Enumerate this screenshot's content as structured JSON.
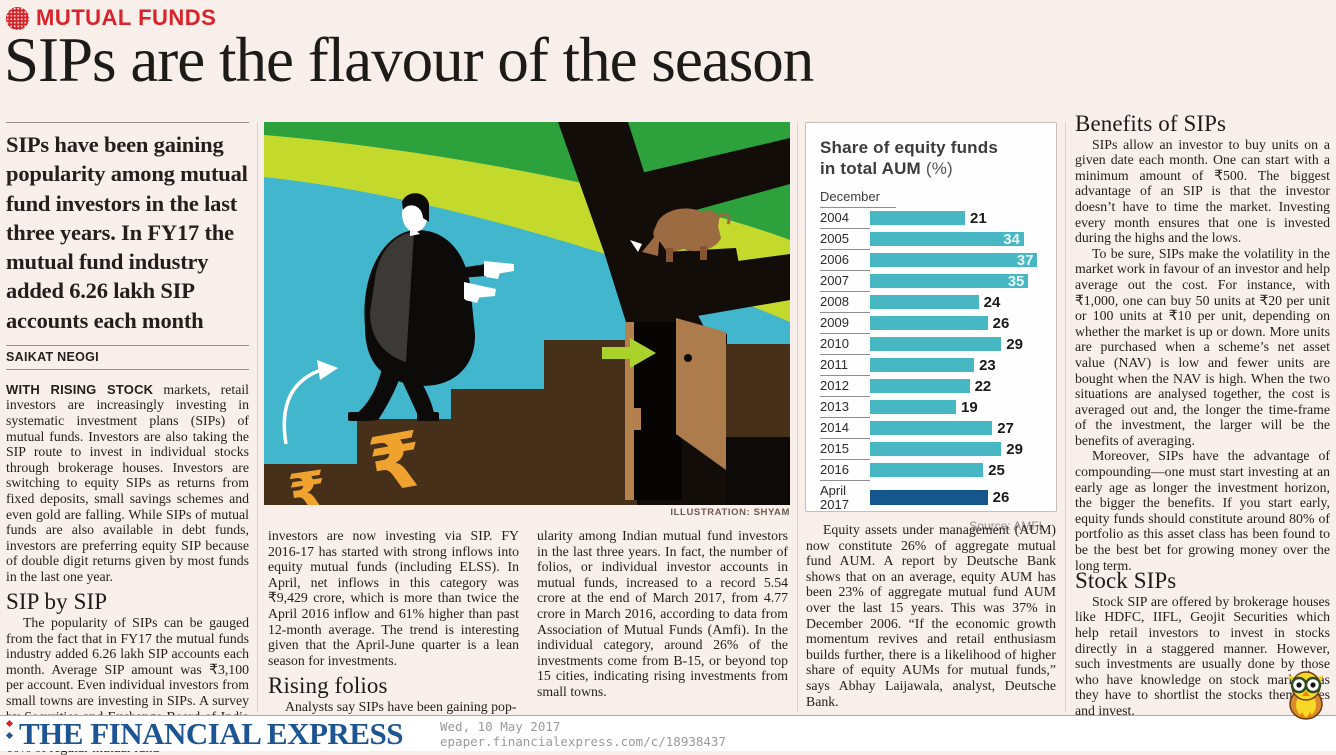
{
  "kicker": {
    "label": "MUTUAL FUNDS"
  },
  "headline": "SIPs are the flavour of the season",
  "standfirst": "SIPs have been gaining popularity among mutual fund investors in the last three years. In FY17 the mutual fund industry added 6.26 lakh SIP accounts each month",
  "byline": "SAIKAT NEOGI",
  "columns": {
    "col1_para1_lead": "WITH RISING STOCK",
    "col1_para1_rest": " markets, retail investors are increasingly investing in systematic investment plans (SIPs) of mutual funds. Investors are also taking the SIP route to invest in individual stocks through brokerage houses. Investors are switching to equity SIPs as returns from fixed deposits, small savings schemes and even gold are falling. While SIPs of mutual funds are also available in debt funds, investors are preferring equity SIP because of double digit returns given by most funds in the last one year.",
    "col1_heading": "SIP by SIP",
    "col1_para2": "The popularity of SIPs can be gauged from the fact that in FY17 the mutual funds industry added 6.26 lakh SIP accounts each month. Average SIP amount was ₹3,100 per account. Even individual investors from small towns are investing in SIPs. A survey by Securities and Exchange Board of India (Sebi) in April this year shows that nearly 60% of regular mutual fund",
    "col2_para1": "investors are now investing via SIP. FY 2016-17 has started with strong inflows into equity mutual funds (including ELSS). In April, net inflows in this category was ₹9,429 crore, which is more than twice the April 2016 inflow and 61% higher than past 12-month average. The trend is interesting given that the April-June quarter is a lean season for investments.",
    "col2_heading": "Rising folios",
    "col2_para2": "Analysts say SIPs have been gaining pop-",
    "col3_para1": "ularity among Indian mutual fund investors in the last three years. In fact, the number of folios, or individual investor accounts in mutual funds, increased to a record 5.54 crore at the end of March 2017, from 4.77 crore in March 2016, according to data from Association of Mutual Funds (Amfi). In the individual category, around 26% of the investments come from B-15, or beyond top 15 cities, indicating rising investments from small towns.",
    "col4_para1": "Equity assets under management (AUM) now constitute 26% of aggregate mutual fund AUM. A report by Deutsche Bank shows that on an average, equity AUM has been 23% of aggregate mutual fund AUM over the last 15 years. This was 37% in December 2006. “If the economic growth momentum revives and retail enthusiasm builds further, there is a likelihood of higher share of equity AUMs for mutual funds,” says Abhay Laijawala, analyst, Deutsche Bank.",
    "col5_heading1": "Benefits of SIPs",
    "col5_para1": "SIPs allow an investor to buy units on a given date each month. One can start with a minimum amount of ₹500. The biggest advantage of an SIP is that the investor doesn’t have to time the market. Investing every month ensures that one is invested during the highs and the lows.",
    "col5_para2": "To be sure, SIPs make the volatility in the market work in favour of an investor and help average out the cost. For instance, with ₹1,000, one can buy 50 units at ₹20 per unit or 100 units at ₹10 per unit, depending on whether the market is up or down. More units are purchased when a scheme’s net asset value (NAV) is low and fewer units are bought when the NAV is high. When the two situations are analysed together, the cost is averaged out and, the longer the time-frame of the investment, the larger will be the benefits of averaging.",
    "col5_para3": "Moreover, SIPs have the advantage of compounding—one must start investing at an early age as longer the investment horizon, the bigger the benefits. If you start early, equity funds should constitute around 80% of portfolio as this asset class has been found to be the best bet for growing money over the long term.",
    "col5_heading2": "Stock SIPs",
    "col5_para4": "Stock SIP are offered by brokerage houses like HDFC, IIFL, Geojit Securities which help retail investors to invest in stocks directly in a staggered manner. However, such investments are usually done by those who have knowledge on stock markets as they have to shortlist the stocks themselves and invest."
  },
  "illustration": {
    "credit": "ILLUSTRATION: SHYAM"
  },
  "chart": {
    "title_line1": "Share of equity funds",
    "title_line2_bold": "in total AUM",
    "title_line2_suffix": " (%)",
    "period_label": "December",
    "source": "Source: AMFI"
  },
  "chart_data": {
    "type": "bar",
    "orientation": "horizontal",
    "title": "Share of equity funds in total AUM (%)",
    "axis_note": "December",
    "categories": [
      "2004",
      "2005",
      "2006",
      "2007",
      "2008",
      "2009",
      "2010",
      "2011",
      "2012",
      "2013",
      "2014",
      "2015",
      "2016",
      "April 2017"
    ],
    "values": [
      21,
      34,
      37,
      35,
      24,
      26,
      29,
      23,
      22,
      19,
      27,
      29,
      25,
      26
    ],
    "xlim": [
      0,
      38
    ],
    "inside_label_threshold": 30,
    "bar_color": "#47b7c3",
    "highlight_color": "#15568d",
    "highlight_index": 13,
    "source": "Source: AMFI",
    "legend_position": "none",
    "grid": false
  },
  "footer": {
    "logo": "THE FINANCIAL EXPRESS",
    "date": "Wed, 10 May 2017",
    "url": "epaper.financialexpress.com/c/18938437"
  }
}
